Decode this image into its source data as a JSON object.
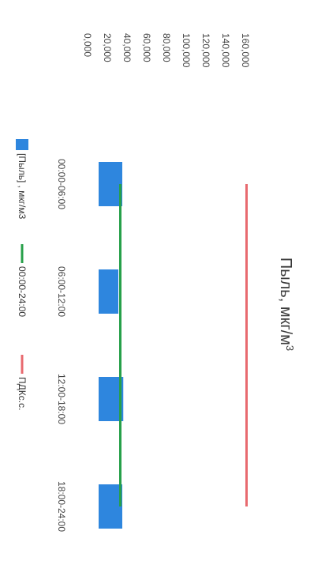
{
  "chart_data": {
    "type": "bar",
    "orientation": "rotated-90-clockwise",
    "title": "Пыль, мкг/м",
    "title_superscript": "3",
    "categories": [
      "00:00-06:00",
      "06:00-12:00",
      "12:00-18:00",
      "18:00-24:00"
    ],
    "y_ticks": [
      "0,000",
      "20,000",
      "40,000",
      "60,000",
      "80,000",
      "100,000",
      "120,000",
      "140,000",
      "160,000"
    ],
    "ylim": [
      0,
      160
    ],
    "grid": false,
    "legend_position": "bottom",
    "series": [
      {
        "name": "[Пыль] , мкг/м3",
        "kind": "bar",
        "color": "#2e86de",
        "values": [
          24,
          20,
          25,
          24
        ]
      },
      {
        "name": "00:00-24:00",
        "kind": "line",
        "color": "#27a04a",
        "values": [
          22,
          22,
          22,
          22
        ]
      },
      {
        "name": "ПДКс.с.",
        "kind": "line",
        "color": "#e86a6f",
        "values": [
          150,
          150,
          150,
          150
        ]
      }
    ]
  }
}
